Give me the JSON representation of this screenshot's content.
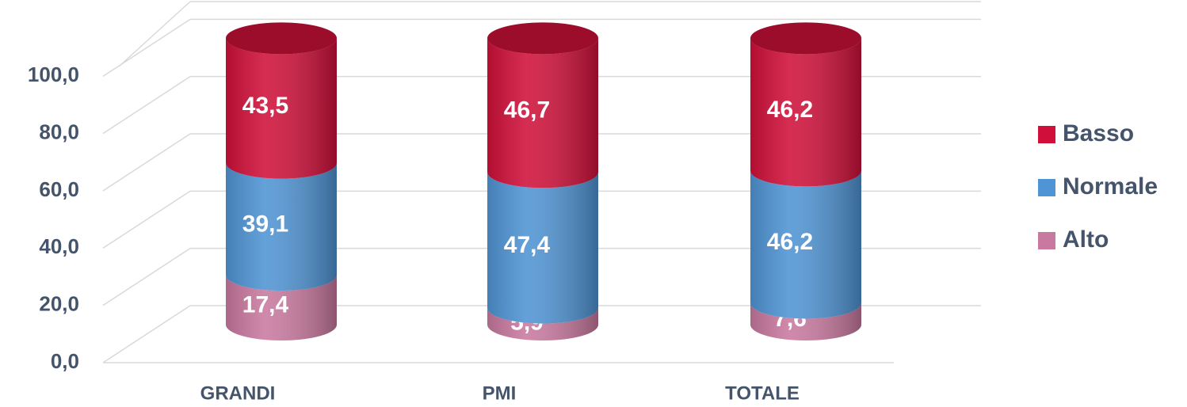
{
  "chart_data": {
    "type": "bar3d",
    "categories": [
      "GRANDI",
      "PMI",
      "TOTALE"
    ],
    "series": [
      {
        "name": "Alto",
        "color": "#c9799f",
        "values": [
          17.4,
          5.9,
          7.6
        ],
        "value_labels": [
          "17,4",
          "5,9",
          "7,6"
        ]
      },
      {
        "name": "Normale",
        "color": "#4f94d4",
        "values": [
          39.1,
          47.4,
          46.2
        ],
        "value_labels": [
          "39,1",
          "47,4",
          "46,2"
        ]
      },
      {
        "name": "Basso",
        "color": "#d0103a",
        "values": [
          43.5,
          46.7,
          46.2
        ],
        "value_labels": [
          "43,5",
          "46,7",
          "46,2"
        ]
      }
    ],
    "ylim": [
      0,
      120
    ],
    "yticks": [
      {
        "value": 0,
        "label": "0,0"
      },
      {
        "value": 20,
        "label": "20,0"
      },
      {
        "value": 40,
        "label": "40,0"
      },
      {
        "value": 60,
        "label": "60,0"
      },
      {
        "value": 80,
        "label": "80,0"
      },
      {
        "value": 100,
        "label": "100,0"
      }
    ],
    "grid": true,
    "legend": "right"
  }
}
